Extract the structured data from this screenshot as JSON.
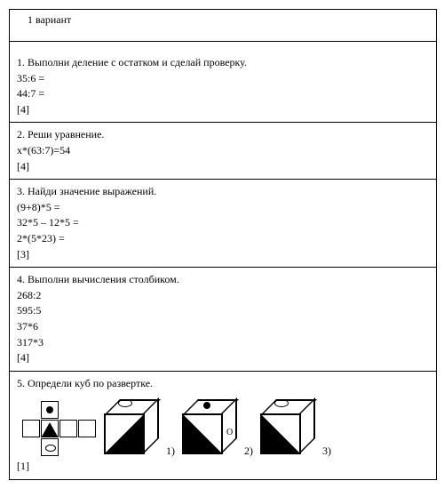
{
  "header": "1 вариант",
  "t1": {
    "title": "1. Выполни деление с остатком и сделай проверку.",
    "l1": "35:6 =",
    "l2": "44:7 =",
    "pts": "[4]"
  },
  "t2": {
    "title": "2. Реши уравнение.",
    "l1": "х*(63:7)=54",
    "pts": "[4]"
  },
  "t3": {
    "title": "3. Найди значение выражений.",
    "l1": "(9+8)*5 =",
    "l2": "32*5 – 12*5 =",
    "l3": "2*(5*23) =",
    "pts": "[3]"
  },
  "t4": {
    "title": "4. Выполни вычисления столбиком.",
    "l1": "268:2",
    "l2": "595:5",
    "l3": "37*6",
    "l4": "317*3",
    "pts": "[4]"
  },
  "t5": {
    "title": "5. Определи куб по развертке.",
    "n1": "1)",
    "n2": "2)",
    "n3": "3)",
    "pts": "[1]"
  },
  "style": {
    "border": "#000000",
    "bg": "#ffffff",
    "text": "#000000",
    "fontsize": 12
  }
}
